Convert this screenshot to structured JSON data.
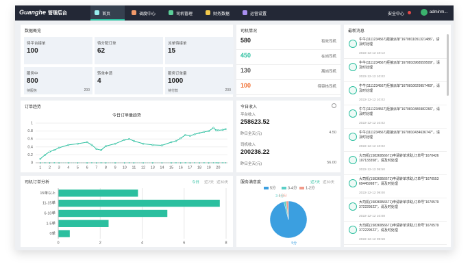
{
  "header": {
    "logo": "Guanghe",
    "title": "管理后台",
    "nav": [
      "首页",
      "调度中心",
      "司机管理",
      "财务数据",
      "运营设置"
    ],
    "security": "安全中心",
    "user": "adminm..."
  },
  "overview": {
    "title": "数据概览",
    "cards": [
      {
        "label": "待平台接单",
        "value": "100"
      },
      {
        "label": "待分配订单",
        "value": "62"
      },
      {
        "label": "派单待接单",
        "value": "15"
      },
      {
        "label": "服务中",
        "value": "800",
        "sub_label": "待服务",
        "sub_value": "200"
      },
      {
        "label": "转单申请",
        "value": "4"
      },
      {
        "label": "服务订单量",
        "value": "1000",
        "sub_label": "待付款",
        "sub_value": "200"
      }
    ]
  },
  "drivers": {
    "title": "司机情况",
    "rows": [
      {
        "value": "580",
        "label": "有效司机"
      },
      {
        "value": "450",
        "label": "在岗司机"
      },
      {
        "value": "130",
        "label": "离岗司机"
      },
      {
        "value": "100",
        "label": "待审核司机"
      }
    ]
  },
  "income": {
    "title": "今日收入",
    "items": [
      {
        "label": "平台收入",
        "value": "258623.52",
        "prev_label": "昨日全天(元)",
        "prev_value": "4.50"
      },
      {
        "label": "司机收入",
        "value": "200236.22",
        "prev_label": "昨日全天(元)",
        "prev_value": "56.00"
      }
    ]
  },
  "messages": {
    "title": "最新消息",
    "items": [
      {
        "text": "牛牛(1111234567)拒接派单“1670811051321486”，请及时处理",
        "time": "2022-12-12 10:12"
      },
      {
        "text": "牛牛(1111234567)拒接派单“1670810968559509”，请及时处理",
        "time": "2022-12-12 10:02"
      },
      {
        "text": "牛牛(1111234567)拒接派单“1670810629957469”，请及时处理",
        "time": "2022-12-12 10:02"
      },
      {
        "text": "牛牛(1111234567)拒接派单“1670810486982266”，请及时处理",
        "time": "2022-12-12 10:02"
      },
      {
        "text": "牛牛(1111234567)拒接派单“1670810434636747”，请及时处理",
        "time": "2022-12-12 10:02"
      },
      {
        "text": "大司机(15836956671)申请转单求助,订单号“1670426107133358”，请及时处理",
        "time": "2022-12-12 09:50"
      },
      {
        "text": "大司机(15836956671)申请转单求助,订单号“1670553694459987”，请及时处理",
        "time": "2022-12-12 09:00"
      },
      {
        "text": "大司机(15836956671)申请转单求助,订单号“1670579372229522”，请及时处理",
        "time": "2022-12-12 10:08"
      },
      {
        "text": "大司机(15836956671)申请转单求助,订单号“1670579372229522”，请及时处理",
        "time": "2022-12-12 09:58"
      }
    ]
  },
  "chart_data": [
    {
      "type": "line",
      "panel_title": "订单趋势",
      "title": "今日订单量趋势",
      "x": [
        1,
        1.5,
        2,
        2.5,
        3,
        4,
        5,
        6,
        6.5,
        7,
        7.5,
        8,
        9,
        10,
        10.5,
        11,
        12,
        13,
        14,
        15,
        15.5,
        16,
        16.5,
        17,
        17.5,
        18,
        18.5,
        19,
        19.5,
        19.8,
        20,
        20.5,
        20.8
      ],
      "series": [
        {
          "color": "#2bbf9f",
          "values": [
            0.1,
            0.2,
            0.28,
            0.32,
            0.38,
            0.45,
            0.48,
            0.52,
            0.45,
            0.35,
            0.32,
            0.42,
            0.48,
            0.58,
            0.6,
            0.55,
            0.48,
            0.45,
            0.44,
            0.52,
            0.55,
            0.62,
            0.7,
            0.68,
            0.72,
            0.75,
            0.78,
            0.8,
            0.88,
            0.82,
            0.82,
            0.83,
            0.85
          ]
        },
        {
          "color": "#2bbf9f",
          "values": [
            0,
            0,
            0,
            0,
            0,
            0,
            0,
            0,
            0,
            0,
            0,
            0,
            0,
            0,
            0,
            0,
            0,
            0,
            0,
            0,
            0,
            0,
            0,
            0,
            0,
            0,
            0,
            0,
            0,
            0,
            0,
            0,
            0
          ]
        }
      ],
      "xlim": [
        0.5,
        21
      ],
      "xticks": [
        1,
        2,
        3,
        4,
        5,
        6,
        7,
        8,
        9,
        10,
        11,
        12,
        13,
        14,
        15,
        16,
        17,
        18,
        19,
        20
      ],
      "ylim": [
        0,
        1
      ],
      "yticks": [
        0,
        0.2,
        0.4,
        0.6,
        0.8,
        1
      ],
      "grid": true
    },
    {
      "type": "hbar",
      "panel_title": "司机订单分析",
      "tabs": [
        "今日",
        "近7天",
        "近30天"
      ],
      "categories": [
        "15单以上",
        "11-15单",
        "6-10单",
        "1-5单",
        "0单"
      ],
      "values": [
        3.8,
        7.7,
        5.2,
        2.4,
        0.55
      ],
      "color": "#2bbf9f",
      "xlim": [
        0,
        8
      ],
      "xticks": [
        0,
        2,
        4,
        6,
        8
      ],
      "grid": true
    },
    {
      "type": "pie",
      "panel_title": "服务满意度",
      "tabs": [
        "近7天",
        "近30天"
      ],
      "categories": [
        "5分",
        "3-4分",
        "1-2分"
      ],
      "values": [
        96,
        2,
        2
      ],
      "colors": [
        "#3b9fe0",
        "#5ccfc7",
        "#f29a8a"
      ],
      "legend": "top"
    }
  ]
}
